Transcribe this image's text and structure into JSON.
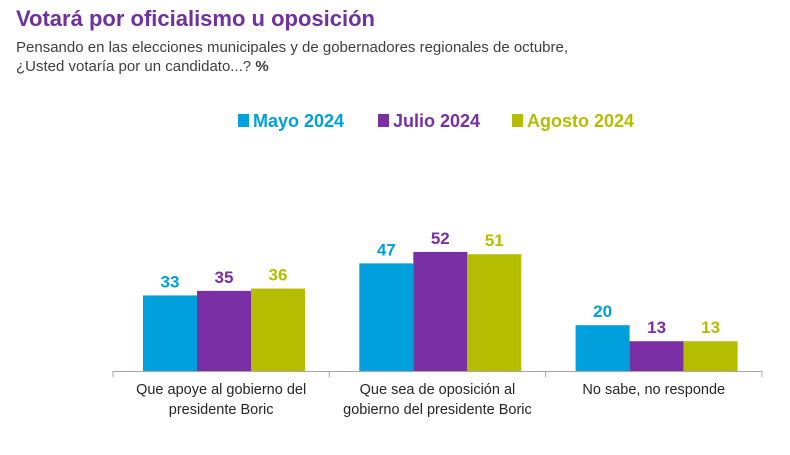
{
  "title": "Votará por oficialismo u oposición",
  "subtitle_line1": "Pensando en las elecciones municipales y de gobernadores regionales de octubre,",
  "subtitle_line2": "¿Usted votaría por un candidato...?",
  "subtitle_unit": "%",
  "chart_data": {
    "type": "bar",
    "categories": [
      [
        "Que apoye al gobierno del",
        "presidente Boric"
      ],
      [
        "Que sea de oposición al",
        "gobierno del presidente Boric"
      ],
      [
        "No sabe, no responde"
      ]
    ],
    "series": [
      {
        "name": "Mayo 2024",
        "color": "#00a0dc",
        "values": [
          33,
          47,
          20
        ]
      },
      {
        "name": "Julio 2024",
        "color": "#7b2fa5",
        "values": [
          35,
          52,
          13
        ]
      },
      {
        "name": "Agosto 2024",
        "color": "#b5bd00",
        "values": [
          36,
          51,
          13
        ]
      }
    ],
    "legend_position": "top-right",
    "ylim": [
      0,
      60
    ],
    "grid": false
  }
}
